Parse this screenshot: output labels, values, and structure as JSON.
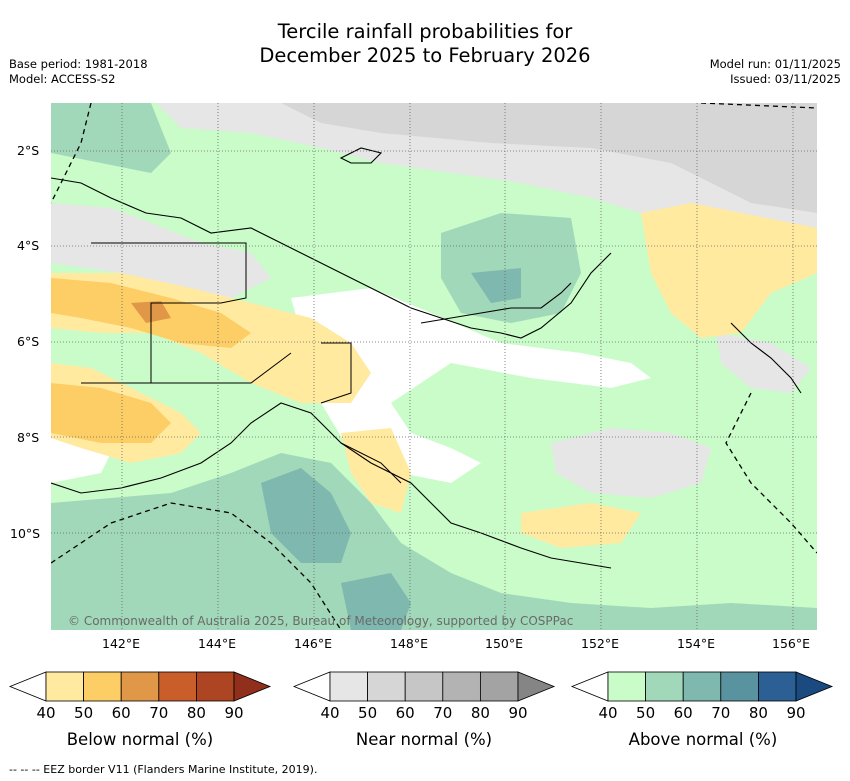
{
  "header": {
    "title_line1": "Tercile rainfall probabilities for",
    "title_line2": "December 2025 to February 2026",
    "base_period": "Base period: 1981-2018",
    "model": "Model: ACCESS-S2",
    "model_run": "Model run: 01/11/2025",
    "issued": "Issued: 03/11/2025"
  },
  "map": {
    "lat_labels": [
      "2°S",
      "4°S",
      "6°S",
      "8°S",
      "10°S"
    ],
    "lon_labels": [
      "142°E",
      "144°E",
      "146°E",
      "148°E",
      "150°E",
      "152°E",
      "154°E",
      "156°E"
    ],
    "copyright": "© Commonwealth of Australia 2025, Bureau of Meteorology, supported by COSPPac"
  },
  "legend": {
    "below": {
      "title": "Below normal (%)",
      "ticks": [
        "40",
        "50",
        "60",
        "70",
        "80",
        "90"
      ],
      "colors": [
        "#ffffff",
        "#ffeaa0",
        "#fdcd66",
        "#e09848",
        "#c95e2b",
        "#ad4523",
        "#8f2f1c"
      ]
    },
    "near": {
      "title": "Near normal (%)",
      "ticks": [
        "40",
        "50",
        "60",
        "70",
        "80",
        "90"
      ],
      "colors": [
        "#ffffff",
        "#e6e6e6",
        "#d6d6d6",
        "#c6c6c6",
        "#b3b3b3",
        "#a3a3a3",
        "#858585"
      ]
    },
    "above": {
      "title": "Above normal (%)",
      "ticks": [
        "40",
        "50",
        "60",
        "70",
        "80",
        "90"
      ],
      "colors": [
        "#ffffff",
        "#c9fcc9",
        "#a1d8b9",
        "#7fb8ae",
        "#5a93a0",
        "#2c5f94",
        "#1a4a80"
      ]
    }
  },
  "footer": {
    "eez_note": "-- -- -- EEZ border V11 (Flanders Marine Institute, 2019)."
  }
}
